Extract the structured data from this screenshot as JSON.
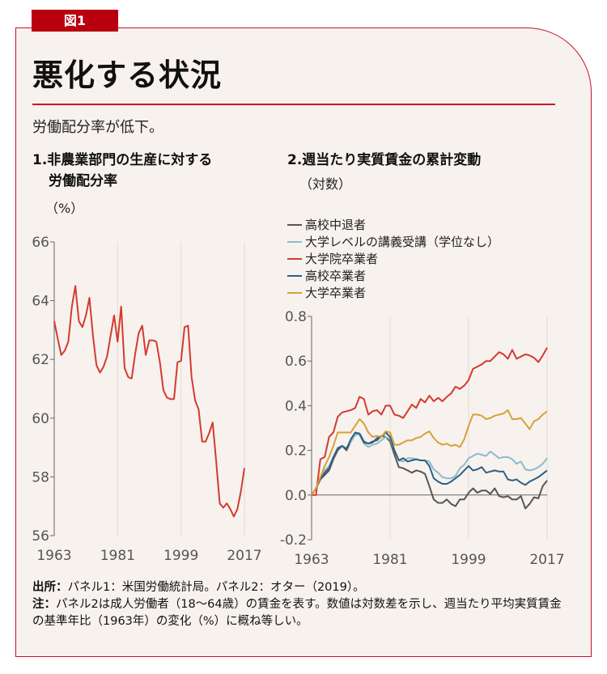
{
  "figure_label": "図1",
  "title": "悪化する状況",
  "subtitle": "労働配分率が低下。",
  "panel1": {
    "title_line1": "1.非農業部門の生産に対する",
    "title_line2": "労働配分率",
    "unit": "（%）"
  },
  "panel2": {
    "title_line1": "2.週当たり実質賃金の累計変動",
    "unit": "（対数）"
  },
  "notes": {
    "source_label": "出所：",
    "source_text": "パネル1：米国労働統計局。パネル2：オター（2019）。",
    "note_label": "注：",
    "note_text": "パネル2は成人労働者（18〜64歳）の賃金を表す。数値は対数差を示し、週当たり平均実質賃金の基準年比（1963年）の変化（%）に概ね等しい。"
  },
  "colors": {
    "accent": "#c8102e",
    "background": "#f7f2ee"
  },
  "chart_data": [
    {
      "type": "line",
      "title": "1.非農業部門の生産に対する労働配分率",
      "ylabel": "（%）",
      "xlim": [
        1963,
        2017
      ],
      "ylim": [
        56,
        66
      ],
      "xticks": [
        "1963",
        "1981",
        "1999",
        "2017"
      ],
      "yticks": [
        "56",
        "58",
        "60",
        "62",
        "64",
        "66"
      ],
      "grid": "vertical",
      "series": [
        {
          "color": "#d43a2f",
          "values": [
            63.3,
            62.7,
            62.15,
            62.3,
            62.6,
            63.8,
            64.5,
            63.3,
            63.1,
            63.5,
            64.1,
            62.8,
            61.8,
            61.55,
            61.75,
            62.1,
            62.8,
            63.5,
            62.6,
            63.8,
            61.7,
            61.4,
            61.35,
            62.2,
            62.9,
            63.15,
            62.15,
            62.65,
            62.65,
            62.6,
            61.9,
            60.95,
            60.7,
            60.65,
            60.65,
            61.9,
            61.95,
            63.1,
            63.15,
            61.4,
            60.6,
            60.3,
            59.2,
            59.2,
            59.5,
            59.85,
            58.5,
            57.1,
            56.95,
            57.1,
            56.9,
            56.65,
            56.9,
            57.5,
            58.3
          ]
        }
      ]
    },
    {
      "type": "line",
      "title": "2.週当たり実質賃金の累計変動",
      "ylabel": "（対数）",
      "xlim": [
        1963,
        2017
      ],
      "ylim": [
        -0.2,
        0.8
      ],
      "xticks": [
        "1963",
        "1981",
        "1999",
        "2017"
      ],
      "yticks": [
        "-0.2",
        "0.0",
        "0.2",
        "0.4",
        "0.6",
        "0.8"
      ],
      "grid": "vertical",
      "legend": "top-left",
      "series": [
        {
          "name": "高校中退者",
          "color": "#555555",
          "values": [
            0,
            0.03,
            0.07,
            0.09,
            0.11,
            0.16,
            0.2,
            0.22,
            0.2,
            0.24,
            0.27,
            0.275,
            0.24,
            0.23,
            0.24,
            0.245,
            0.265,
            0.26,
            0.24,
            0.18,
            0.125,
            0.12,
            0.11,
            0.1,
            0.11,
            0.105,
            0.095,
            0.04,
            -0.02,
            -0.035,
            -0.035,
            -0.02,
            -0.04,
            -0.05,
            -0.02,
            -0.02,
            0.01,
            0.03,
            0.01,
            0.02,
            0.02,
            0.005,
            0.03,
            -0.005,
            -0.01,
            -0.005,
            -0.02,
            -0.02,
            -0.005,
            -0.06,
            -0.04,
            -0.01,
            -0.015,
            0.04,
            0.065
          ]
        },
        {
          "name": "大学レベルの講義受講（学位なし）",
          "color": "#8cbccc",
          "values": [
            0,
            0.03,
            0.07,
            0.11,
            0.13,
            0.17,
            0.21,
            0.22,
            0.21,
            0.24,
            0.27,
            0.27,
            0.23,
            0.215,
            0.225,
            0.23,
            0.245,
            0.26,
            0.25,
            0.2,
            0.155,
            0.15,
            0.165,
            0.165,
            0.16,
            0.155,
            0.155,
            0.15,
            0.115,
            0.1,
            0.08,
            0.075,
            0.075,
            0.085,
            0.12,
            0.135,
            0.165,
            0.175,
            0.185,
            0.18,
            0.175,
            0.195,
            0.18,
            0.165,
            0.17,
            0.17,
            0.16,
            0.14,
            0.15,
            0.115,
            0.11,
            0.115,
            0.125,
            0.14,
            0.165
          ]
        },
        {
          "name": "大学院卒業者",
          "color": "#d43a2f",
          "values": [
            0,
            0,
            0.16,
            0.17,
            0.26,
            0.28,
            0.35,
            0.37,
            0.375,
            0.38,
            0.39,
            0.44,
            0.43,
            0.36,
            0.375,
            0.38,
            0.36,
            0.4,
            0.4,
            0.36,
            0.355,
            0.345,
            0.375,
            0.405,
            0.39,
            0.43,
            0.415,
            0.445,
            0.42,
            0.435,
            0.42,
            0.44,
            0.455,
            0.485,
            0.475,
            0.49,
            0.515,
            0.565,
            0.575,
            0.585,
            0.6,
            0.6,
            0.62,
            0.64,
            0.63,
            0.61,
            0.65,
            0.61,
            0.62,
            0.63,
            0.625,
            0.615,
            0.595,
            0.625,
            0.66
          ]
        },
        {
          "name": "高校卒業者",
          "color": "#2f5f86",
          "values": [
            0,
            0.03,
            0.07,
            0.1,
            0.12,
            0.17,
            0.21,
            0.22,
            0.205,
            0.25,
            0.28,
            0.275,
            0.235,
            0.23,
            0.235,
            0.255,
            0.26,
            0.28,
            0.26,
            0.2,
            0.155,
            0.165,
            0.15,
            0.155,
            0.16,
            0.155,
            0.155,
            0.13,
            0.075,
            0.06,
            0.05,
            0.05,
            0.06,
            0.075,
            0.09,
            0.11,
            0.13,
            0.11,
            0.115,
            0.125,
            0.1,
            0.105,
            0.11,
            0.105,
            0.105,
            0.07,
            0.065,
            0.07,
            0.055,
            0.045,
            0.06,
            0.07,
            0.08,
            0.095,
            0.11
          ]
        },
        {
          "name": "大学卒業者",
          "color": "#d9a03a",
          "values": [
            0,
            0.03,
            0.08,
            0.13,
            0.17,
            0.22,
            0.28,
            0.28,
            0.28,
            0.28,
            0.31,
            0.34,
            0.32,
            0.28,
            0.26,
            0.265,
            0.26,
            0.285,
            0.28,
            0.225,
            0.225,
            0.235,
            0.245,
            0.245,
            0.255,
            0.26,
            0.275,
            0.285,
            0.255,
            0.235,
            0.225,
            0.23,
            0.22,
            0.225,
            0.215,
            0.25,
            0.31,
            0.36,
            0.36,
            0.355,
            0.34,
            0.345,
            0.355,
            0.36,
            0.365,
            0.38,
            0.34,
            0.34,
            0.345,
            0.32,
            0.295,
            0.33,
            0.34,
            0.36,
            0.375
          ]
        }
      ]
    }
  ]
}
